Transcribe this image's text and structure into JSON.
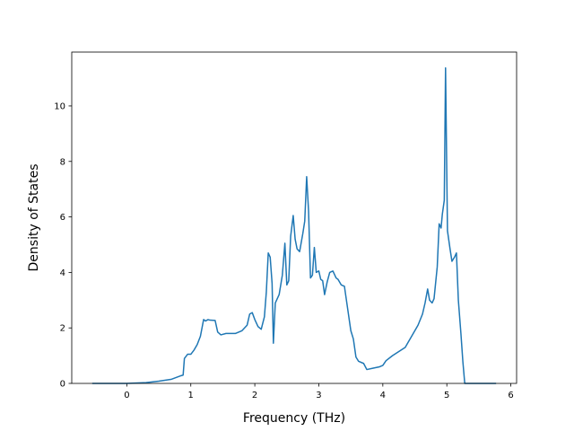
{
  "chart_data": {
    "type": "line",
    "x_label": "Frequency (THz)",
    "y_label": "Density of States",
    "xlim": [
      -0.86,
      6.09
    ],
    "ylim": [
      0,
      11.94
    ],
    "xticks": [
      0,
      1,
      2,
      3,
      4,
      5,
      6
    ],
    "yticks": [
      0,
      2,
      4,
      6,
      8,
      10
    ],
    "color": "#1f77b4",
    "x": [
      -0.54,
      0,
      0.3,
      0.5,
      0.7,
      0.85,
      0.88,
      0.9,
      0.95,
      1.0,
      1.05,
      1.1,
      1.15,
      1.2,
      1.23,
      1.27,
      1.3,
      1.38,
      1.42,
      1.47,
      1.55,
      1.7,
      1.8,
      1.88,
      1.92,
      1.96,
      2.0,
      2.05,
      2.1,
      2.15,
      2.18,
      2.21,
      2.24,
      2.27,
      2.29,
      2.32,
      2.38,
      2.43,
      2.47,
      2.5,
      2.53,
      2.56,
      2.6,
      2.63,
      2.66,
      2.7,
      2.75,
      2.78,
      2.81,
      2.84,
      2.87,
      2.9,
      2.93,
      2.96,
      3.0,
      3.03,
      3.06,
      3.09,
      3.13,
      3.17,
      3.22,
      3.27,
      3.3,
      3.35,
      3.4,
      3.45,
      3.5,
      3.54,
      3.58,
      3.62,
      3.7,
      3.75,
      3.85,
      3.95,
      4.0,
      4.05,
      4.15,
      4.35,
      4.45,
      4.55,
      4.62,
      4.66,
      4.7,
      4.73,
      4.77,
      4.8,
      4.85,
      4.88,
      4.91,
      4.93,
      4.96,
      4.98,
      5.01,
      5.05,
      5.08,
      5.12,
      5.15,
      5.18,
      5.22,
      5.25,
      5.28,
      5.5,
      5.77
    ],
    "values": [
      0,
      0,
      0.03,
      0.08,
      0.15,
      0.28,
      0.3,
      0.9,
      1.05,
      1.05,
      1.2,
      1.4,
      1.7,
      2.3,
      2.25,
      2.3,
      2.28,
      2.27,
      1.85,
      1.75,
      1.8,
      1.8,
      1.9,
      2.1,
      2.5,
      2.55,
      2.3,
      2.05,
      1.95,
      2.4,
      3.3,
      4.7,
      4.55,
      3.6,
      1.45,
      2.9,
      3.2,
      3.9,
      5.05,
      3.55,
      3.7,
      5.3,
      6.05,
      5.2,
      4.85,
      4.75,
      5.4,
      5.85,
      7.45,
      6.2,
      3.8,
      3.9,
      4.9,
      4.0,
      4.05,
      3.75,
      3.7,
      3.2,
      3.65,
      4.0,
      4.05,
      3.8,
      3.75,
      3.55,
      3.5,
      2.7,
      1.9,
      1.6,
      0.95,
      0.8,
      0.72,
      0.5,
      0.55,
      0.6,
      0.65,
      0.82,
      1.0,
      1.3,
      1.7,
      2.1,
      2.5,
      2.9,
      3.4,
      3.0,
      2.9,
      3.05,
      4.2,
      5.75,
      5.6,
      6.1,
      6.6,
      11.37,
      5.5,
      4.85,
      4.4,
      4.55,
      4.7,
      3.0,
      1.8,
      0.8,
      0,
      0,
      0
    ]
  }
}
